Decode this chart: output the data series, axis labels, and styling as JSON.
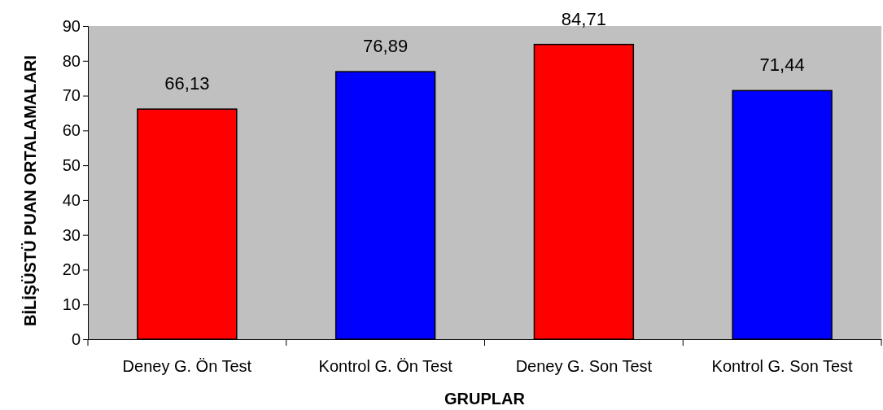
{
  "chart_data": {
    "type": "bar",
    "xlabel": "GRUPLAR",
    "ylabel": "BİLİŞÜSTÜ PUAN ORTALAMALARI",
    "categories": [
      "Deney G. Ön Test",
      "Kontrol G. Ön Test",
      "Deney G. Son Test",
      "Kontrol G. Son Test"
    ],
    "values": [
      66.13,
      76.89,
      84.71,
      71.44
    ],
    "colors": [
      "#ff0000",
      "#0000ff",
      "#ff0000",
      "#0000ff"
    ],
    "value_labels": [
      "66,13",
      "76,89",
      "84,71",
      "71,44"
    ],
    "ylim": [
      0,
      90
    ],
    "yticks": [
      0,
      10,
      20,
      30,
      40,
      50,
      60,
      70,
      80,
      90
    ],
    "grid": false
  }
}
